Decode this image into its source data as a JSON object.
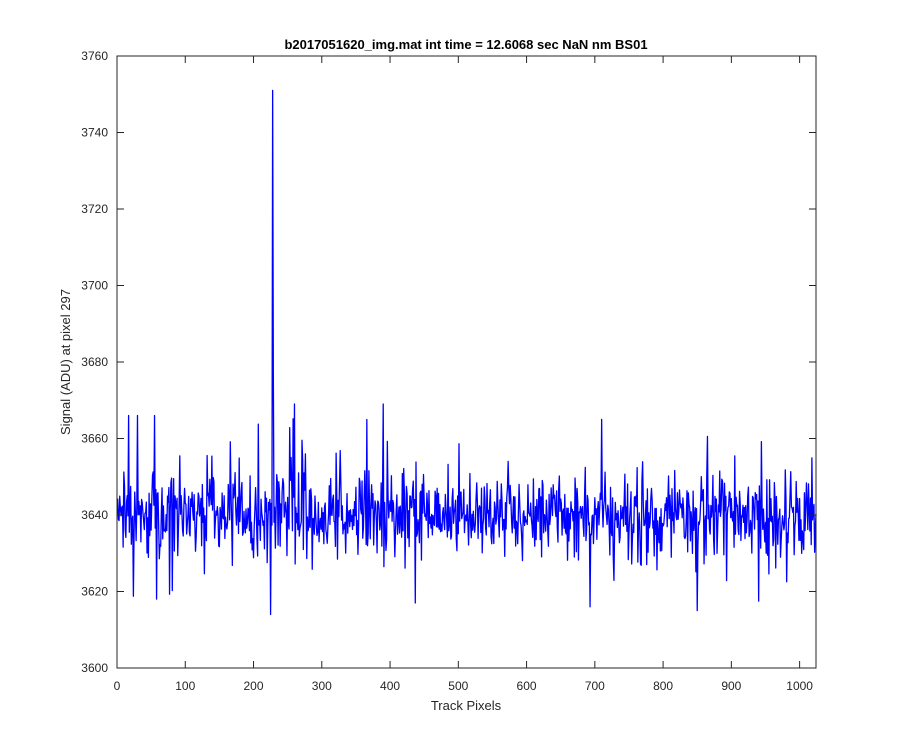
{
  "chart_data": {
    "type": "line",
    "title": "b2017051620_img.mat int time = 12.6068 sec  NaN nm BS01",
    "xlabel": "Track Pixels",
    "ylabel": "Signal (ADU) at pixel 297",
    "xlim": [
      0,
      1024
    ],
    "ylim": [
      3600,
      3760
    ],
    "xticks": [
      0,
      100,
      200,
      300,
      400,
      500,
      600,
      700,
      800,
      900,
      1000
    ],
    "yticks": [
      3600,
      3620,
      3640,
      3660,
      3680,
      3700,
      3720,
      3740,
      3760
    ],
    "grid": false,
    "line_color": "#0000ff",
    "series": [
      {
        "x_start": 1,
        "x_step": 1,
        "noise_model": {
          "mean": 3640,
          "points": 1024,
          "features": [
            {
              "x": 228,
              "y": 3751,
              "label": "spike"
            },
            {
              "x": 225,
              "y": 3614,
              "label": "dip"
            },
            {
              "x": 229,
              "y": 3678
            },
            {
              "x": 260,
              "y": 3669
            },
            {
              "x": 390,
              "y": 3669
            },
            {
              "x": 693,
              "y": 3616
            },
            {
              "x": 850,
              "y": 3615
            },
            {
              "x": 710,
              "y": 3665
            },
            {
              "x": 55,
              "y": 3666
            },
            {
              "x": 30,
              "y": 3666
            },
            {
              "x": 58,
              "y": 3618
            }
          ]
        }
      }
    ]
  }
}
